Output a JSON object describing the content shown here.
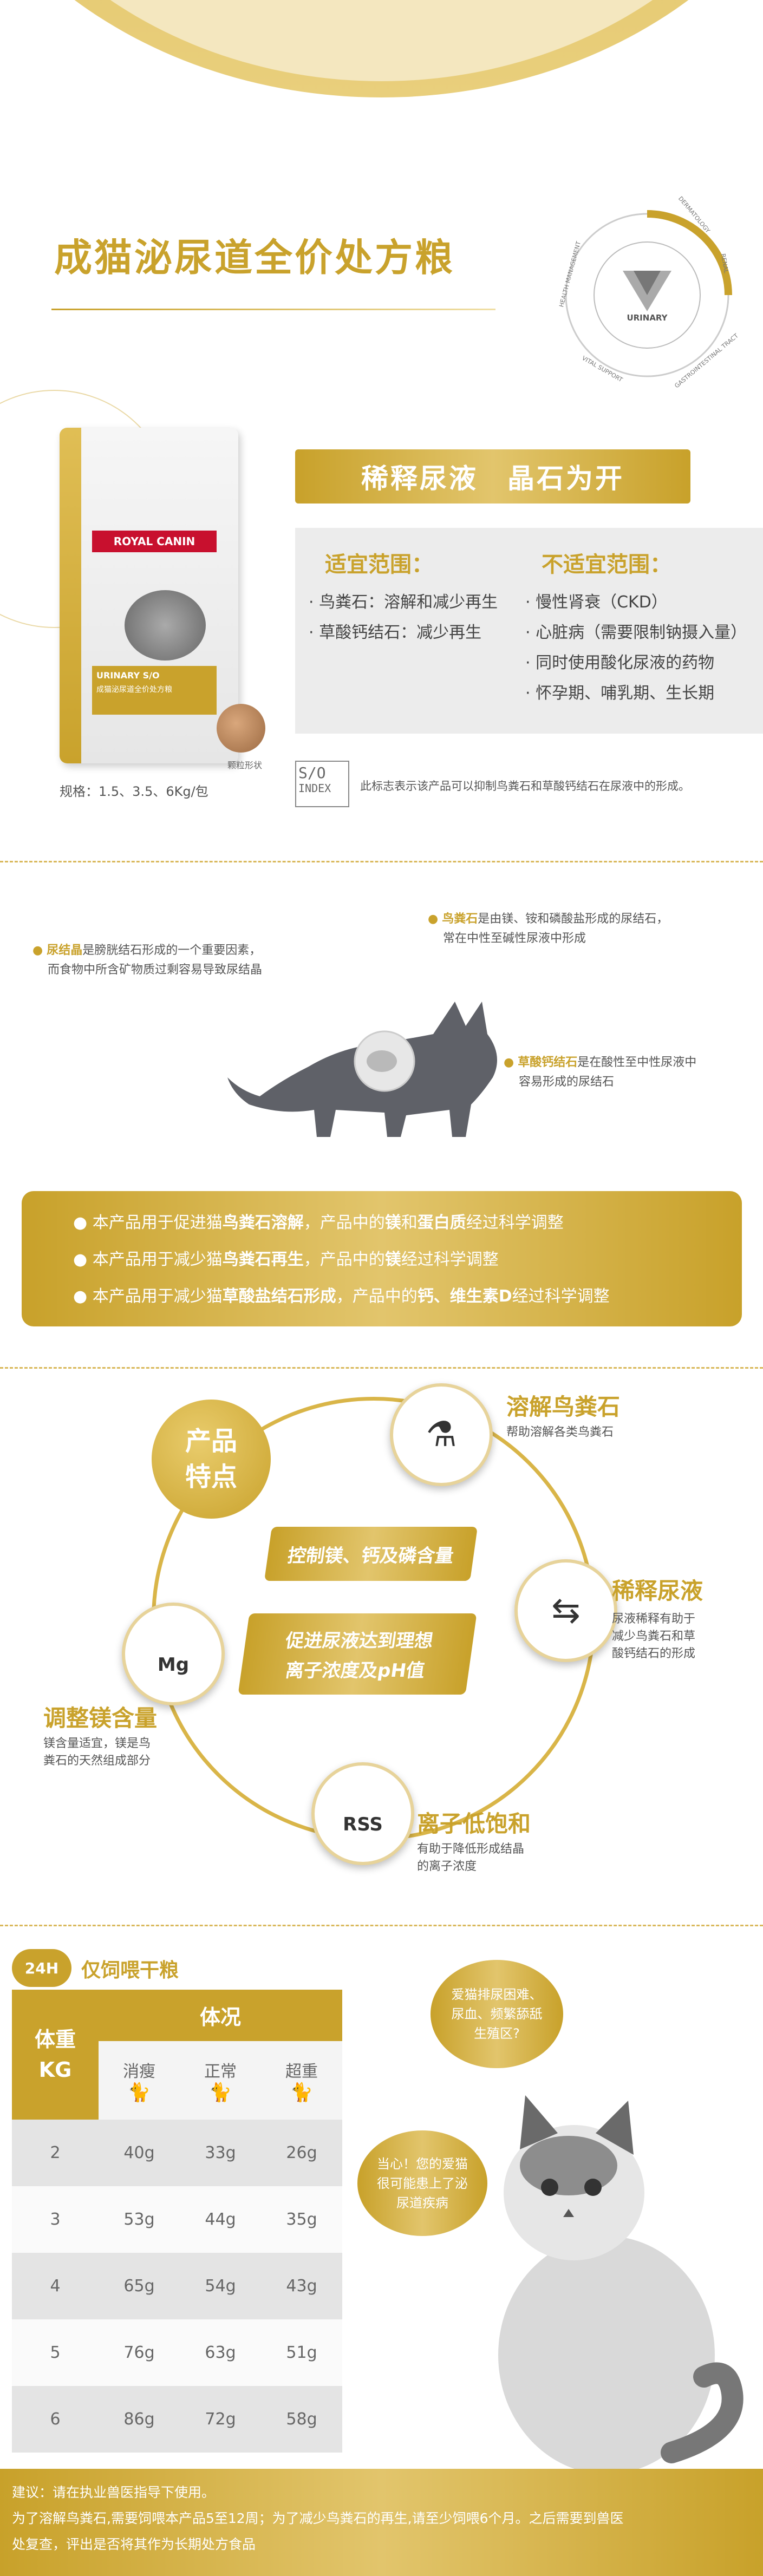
{
  "header": {
    "title": "成猫泌尿道全价处方粮"
  },
  "badge": {
    "center": "URINARY",
    "ring_labels": [
      "DERMATOLOGY",
      "RENAL",
      "GASTROINTESTINAL TRACT",
      "VITAL SUPPORT",
      "HEALTH MANAGEMENT"
    ]
  },
  "product": {
    "brand": "ROYAL CANIN",
    "bag_label": "URINARY S/O",
    "bag_sublabel": "成猫泌尿道全价处方粮",
    "kibble_label": "颗粒形状",
    "spec": "规格：1.5、3.5、6Kg/包",
    "banner": "稀释尿液　晶石为开",
    "suitable_title": "适宜范围：",
    "suitable": [
      "· 鸟粪石：溶解和减少再生",
      "· 草酸钙结石：减少再生"
    ],
    "unsuitable_title": "不适宜范围：",
    "unsuitable": [
      "· 慢性肾衰（CKD）",
      "· 心脏病（需要限制钠摄入量）",
      "· 同时使用酸化尿液的药物",
      "· 怀孕期、哺乳期、生长期"
    ],
    "so_index_text": "此标志表示该产品可以抑制鸟粪石和草酸钙结石在尿液中的形成。",
    "so_logo_top": "S/O",
    "so_logo_bottom": "INDEX"
  },
  "crystals": {
    "crystal_name": "尿结晶",
    "crystal_desc_1": "是膀胱结石形成的一个重要因素，",
    "crystal_desc_2": "而食物中所含矿物质过剩容易导致尿结晶",
    "struvite_name": "鸟粪石",
    "struvite_desc_1": "是由镁、铵和磷酸盐形成的尿结石，",
    "struvite_desc_2": "常在中性至碱性尿液中形成",
    "oxalate_name": "草酸钙结石",
    "oxalate_desc_1": "是在酸性至中性尿液中",
    "oxalate_desc_2": "容易形成的尿结石"
  },
  "usage": [
    {
      "a": "本产品用于促进猫",
      "b": "鸟粪石溶解",
      "c": "，产品中的",
      "d": "镁",
      "e": "和",
      "f": "蛋白质",
      "g": "经过科学调整"
    },
    {
      "a": "本产品用于减少猫",
      "b": "鸟粪石再生",
      "c": "，产品中的",
      "d": "镁",
      "e": "经过科学调整",
      "f": "",
      "g": ""
    },
    {
      "a": "本产品用于减少猫",
      "b": "草酸盐结石形成",
      "c": "，产品中的",
      "d": "钙、维生素D",
      "e": "经过科学调整",
      "f": "",
      "g": ""
    }
  ],
  "features": {
    "center_1": "产品",
    "center_2": "特点",
    "pill_1": "控制镁、钙及磷含量",
    "pill_2a": "促进尿液达到理想",
    "pill_2b": "离子浓度及pH值",
    "f1_title": "溶解鸟粪石",
    "f1_desc": "帮助溶解各类鸟粪石",
    "f2_title": "稀释尿液",
    "f2_desc_1": "尿液稀释有助于",
    "f2_desc_2": "减少鸟粪石和草",
    "f2_desc_3": "酸钙结石的形成",
    "f3_title": "调整镁含量",
    "f3_desc_1": "镁含量适宜，镁是鸟",
    "f3_desc_2": "粪石的天然组成部分",
    "f4_title": "离子低饱和",
    "f4_desc_1": "有助于降低形成结晶",
    "f4_desc_2": "的离子浓度",
    "mg_label": "Mg",
    "rss_label": "RSS"
  },
  "feeding": {
    "badge": "24H",
    "title": "仅饲喂干粮",
    "col_weight_1": "体重",
    "col_weight_2": "KG",
    "col_condition": "体况",
    "sub_headers": [
      "消瘦",
      "正常",
      "超重"
    ],
    "rows": [
      [
        "2",
        "40g",
        "33g",
        "26g"
      ],
      [
        "3",
        "53g",
        "44g",
        "35g"
      ],
      [
        "4",
        "65g",
        "54g",
        "43g"
      ],
      [
        "5",
        "76g",
        "63g",
        "51g"
      ],
      [
        "6",
        "86g",
        "72g",
        "58g"
      ]
    ],
    "bubble_1": "爱猫排尿困难、尿血、频繁舔舐生殖区?",
    "bubble_2": "当心！您的爱猫很可能患上了泌尿道疾病"
  },
  "footer": {
    "line_1": "建议：请在执业兽医指导下使用。",
    "line_2": "为了溶解鸟粪石,需要饲喂本产品5至12周；为了减少鸟粪石的再生,请至少饲喂6个月。之后需要到兽医",
    "line_3": "处复查，评出是否将其作为长期处方食品"
  },
  "colors": {
    "gold": "#c9a22c",
    "gold_light": "#e2c56c"
  }
}
